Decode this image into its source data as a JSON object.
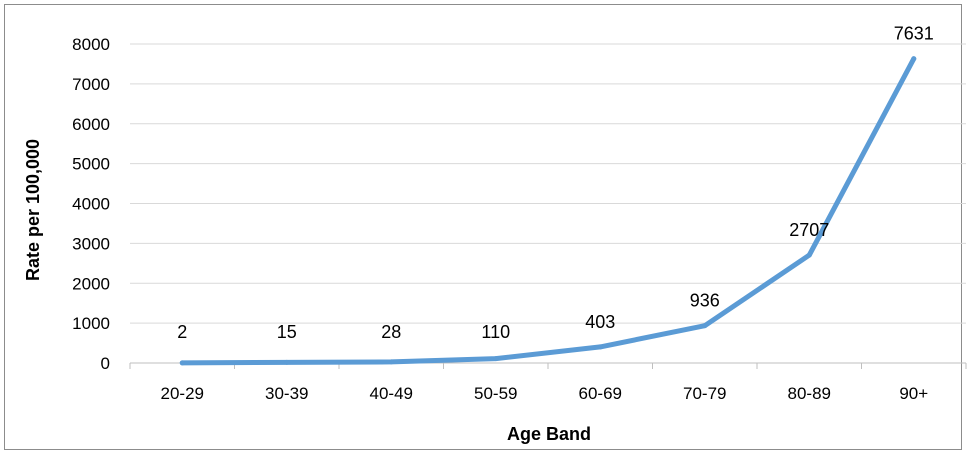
{
  "chart_data": {
    "type": "line",
    "title": "",
    "xlabel": "Age Band",
    "ylabel": "Rate per 100,000",
    "categories": [
      "20-29",
      "30-39",
      "40-49",
      "50-59",
      "60-69",
      "70-79",
      "80-89",
      "90+"
    ],
    "series": [
      {
        "values": [
          2,
          15,
          28,
          110,
          403,
          936,
          2707,
          7631
        ],
        "color": "#5b9bd5"
      }
    ],
    "data_labels": [
      "2",
      "15",
      "28",
      "110",
      "403",
      "936",
      "2707",
      "7631"
    ],
    "y_ticks": [
      "0",
      "1000",
      "2000",
      "3000",
      "4000",
      "5000",
      "6000",
      "7000",
      "8000"
    ],
    "ylim": [
      0,
      8000
    ],
    "grid": true,
    "legend": "none",
    "colors": {
      "line": "#5b9bd5",
      "grid": "#d9d9d9",
      "axis": "#bfbfbf",
      "border": "#8c8c8c"
    }
  }
}
